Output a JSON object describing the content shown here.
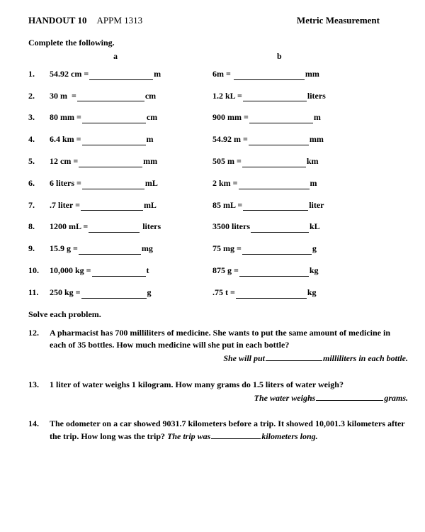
{
  "header": {
    "handout": "HANDOUT 10",
    "course": "APPM 1313",
    "title": "Metric Measurement"
  },
  "instruction1": "Complete the following.",
  "col_a_label": "a",
  "col_b_label": "b",
  "rows": [
    {
      "n": "1.",
      "a_lhs": "54.92 cm =",
      "a_unit": "m",
      "a_blank": 90,
      "b_lhs": "6m = ",
      "b_unit": "mm",
      "b_blank": 100
    },
    {
      "n": "2.",
      "a_lhs": "30 m  =",
      "a_unit": "cm",
      "a_blank": 95,
      "b_lhs": "1.2 kL =",
      "b_unit": "liters",
      "b_blank": 90
    },
    {
      "n": "3.",
      "a_lhs": "80 mm =",
      "a_unit": "cm",
      "a_blank": 90,
      "b_lhs": "900 mm =",
      "b_unit": "m",
      "b_blank": 90
    },
    {
      "n": "4.",
      "a_lhs": "6.4 km =",
      "a_unit": "m",
      "a_blank": 90,
      "b_lhs": "54.92 m =",
      "b_unit": "mm",
      "b_blank": 85
    },
    {
      "n": "5.",
      "a_lhs": "12 cm =",
      "a_unit": "mm",
      "a_blank": 90,
      "b_lhs": "505 m =",
      "b_unit": "km",
      "b_blank": 90
    },
    {
      "n": "6.",
      "a_lhs": "6 liters =",
      "a_unit": "mL",
      "a_blank": 88,
      "b_lhs": "2 km =",
      "b_unit": "m",
      "b_blank": 100
    },
    {
      "n": "7.",
      "a_lhs": ".7 liter =",
      "a_unit": "mL",
      "a_blank": 88,
      "b_lhs": "85 mL =",
      "b_unit": "liter",
      "b_blank": 92
    },
    {
      "n": "8.",
      "a_lhs": "1200 mL =",
      "a_unit": " liters",
      "a_blank": 72,
      "b_lhs": "3500 liters",
      "b_unit": "kL",
      "b_blank": 82
    },
    {
      "n": "9.",
      "a_lhs": "15.9 g =",
      "a_unit": "mg",
      "a_blank": 88,
      "b_lhs": "75 mg =",
      "b_unit": "g",
      "b_blank": 98
    },
    {
      "n": "10.",
      "a_lhs": "10,000 kg =",
      "a_unit": "t",
      "a_blank": 76,
      "b_lhs": "875 g =",
      "b_unit": "kg",
      "b_blank": 98
    },
    {
      "n": "11.",
      "a_lhs": "250 kg =",
      "a_unit": "g",
      "a_blank": 92,
      "b_lhs": ".75 t =",
      "b_unit": "kg",
      "b_blank": 100
    }
  ],
  "instruction2": "Solve each problem.",
  "problems": [
    {
      "n": "12.",
      "text": "A pharmacist has 700 milliliters of medicine.  She wants to put the same amount of medicine in each of 35  bottles.  How much medicine will she put in each bottle?",
      "ans_pre": "She will put",
      "ans_post": "milliliters in each bottle.",
      "blank": 80
    },
    {
      "n": "13.",
      "text": "1 liter of water weighs 1 kilogram.  How many grams do 1.5 liters of water weigh?",
      "ans_pre": "The water weighs",
      "ans_post": "grams.",
      "blank": 95
    },
    {
      "n": "14.",
      "text": "The odometer on a car showed 9031.7 kilometers before a trip. It showed 10,001.3 kilometers after the trip.  How long was the trip?",
      "ans_inline": true,
      "ans_pre": "The trip was",
      "ans_post": "kilometers long.",
      "blank": 70
    }
  ]
}
